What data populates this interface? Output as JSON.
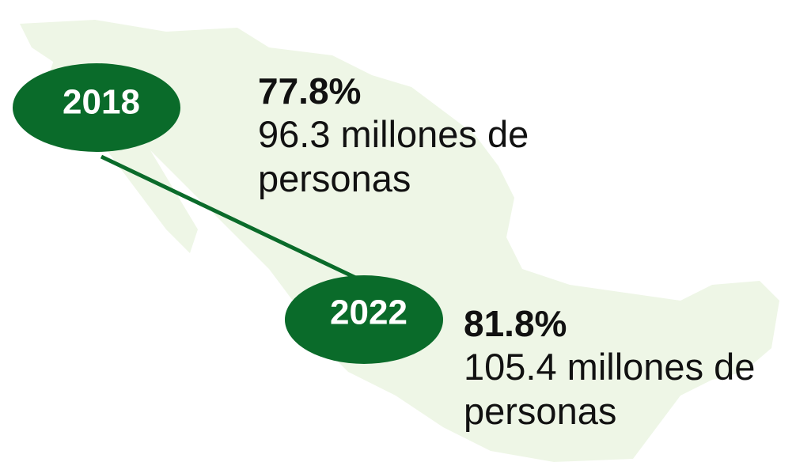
{
  "items": [
    {
      "year": "2018",
      "percent": "77.8%",
      "people": "96.3 millones de personas"
    },
    {
      "year": "2022",
      "percent": "81.8%",
      "people": "105.4 millones de personas"
    }
  ]
}
